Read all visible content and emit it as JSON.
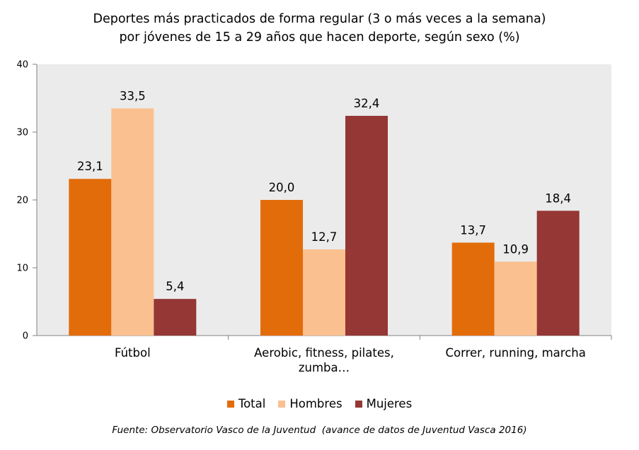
{
  "chart_data": {
    "type": "bar",
    "title_lines": [
      "Deportes más practicados de forma regular (3 o más veces a la semana)",
      "por jóvenes de 15 a 29 años que hacen deporte, según sexo (%)"
    ],
    "categories": [
      [
        "Fútbol"
      ],
      [
        "Aerobic, fitness, pilates,",
        "zumba…"
      ],
      [
        "Correr, running, marcha"
      ]
    ],
    "series": [
      {
        "name": "Total",
        "color": "#E36C0A",
        "values": [
          23.1,
          20.0,
          13.7
        ],
        "labels": [
          "23,1",
          "20,0",
          "13,7"
        ]
      },
      {
        "name": "Hombres",
        "color": "#FAC090",
        "values": [
          33.5,
          12.7,
          10.9
        ],
        "labels": [
          "33,5",
          "12,7",
          "10,9"
        ]
      },
      {
        "name": "Mujeres",
        "color": "#953735",
        "values": [
          5.4,
          32.4,
          18.4
        ],
        "labels": [
          "5,4",
          "32,4",
          "18,4"
        ]
      }
    ],
    "ylim": [
      0,
      40
    ],
    "yticks": [
      0,
      10,
      20,
      30,
      40
    ],
    "plot_background": "#EBEBEB",
    "legend_position": "bottom",
    "grid": false,
    "source": "Fuente: Observatorio Vasco de la Juventud  (avance de datos de Juventud Vasca 2016)"
  }
}
